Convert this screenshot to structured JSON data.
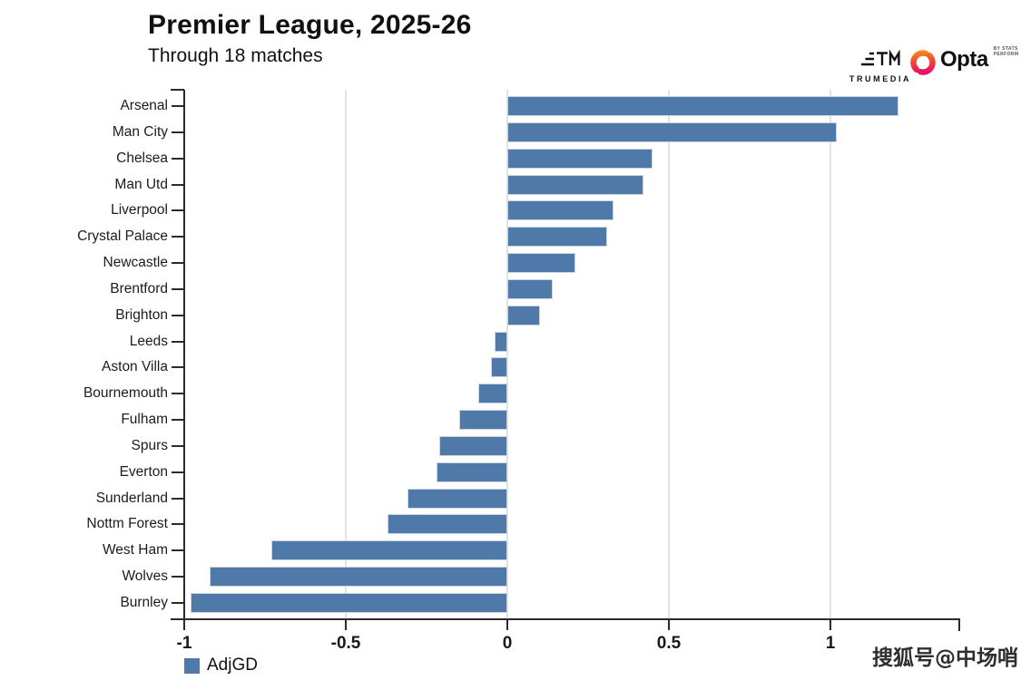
{
  "logos": {
    "trumedia": "TRUMEDIA",
    "opta": "Opta",
    "opta_tagline": "by STATS PERFORM"
  },
  "watermark": "搜狐号@中场哨",
  "colors": {
    "bar": "#4e79a8",
    "bar_border": "#ccd5de",
    "axis": "#2b2b2b",
    "grid": "#e3e3e3",
    "text": "#1a1a1a"
  },
  "chart_data": {
    "type": "bar",
    "orientation": "horizontal",
    "title": "Premier League, 2025-26",
    "subtitle": "Through 18 matches",
    "series": [
      {
        "name": "AdjGD",
        "color": "#4e79a8"
      }
    ],
    "categories": [
      "Arsenal",
      "Man City",
      "Chelsea",
      "Man Utd",
      "Liverpool",
      "Crystal Palace",
      "Newcastle",
      "Brentford",
      "Brighton",
      "Leeds",
      "Aston Villa",
      "Bournemouth",
      "Fulham",
      "Spurs",
      "Everton",
      "Sunderland",
      "Nottm Forest",
      "West Ham",
      "Wolves",
      "Burnley"
    ],
    "values": [
      1.21,
      1.02,
      0.45,
      0.42,
      0.33,
      0.31,
      0.21,
      0.14,
      0.1,
      -0.04,
      -0.05,
      -0.09,
      -0.15,
      -0.21,
      -0.22,
      -0.31,
      -0.37,
      -0.73,
      -0.92,
      -0.98
    ],
    "xlabel": "",
    "ylabel": "",
    "xlim": [
      -1.05,
      1.4
    ],
    "xticks": [
      -1,
      -0.5,
      0,
      0.5,
      1
    ],
    "xtick_labels": [
      "-1",
      "-0.5",
      "0",
      "0.5",
      "1"
    ],
    "gridlines": [
      -0.5,
      0,
      0.5,
      1
    ],
    "grid": true,
    "legend_position": "bottom-left"
  }
}
